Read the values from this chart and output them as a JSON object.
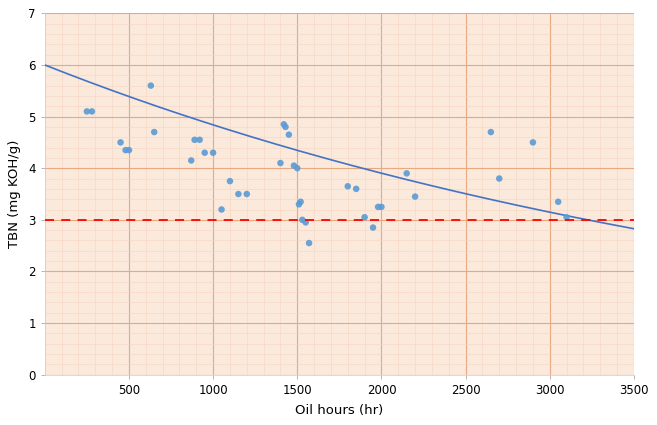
{
  "scatter_x": [
    250,
    280,
    450,
    480,
    500,
    630,
    650,
    870,
    890,
    920,
    950,
    1000,
    1050,
    1100,
    1150,
    1200,
    1400,
    1420,
    1430,
    1450,
    1480,
    1500,
    1510,
    1520,
    1530,
    1550,
    1570,
    1800,
    1850,
    1900,
    1950,
    1980,
    2000,
    2150,
    2200,
    2650,
    2700,
    2900,
    3050,
    3100
  ],
  "scatter_y": [
    5.1,
    5.1,
    4.5,
    4.35,
    4.35,
    5.6,
    4.7,
    4.15,
    4.55,
    4.55,
    4.3,
    4.3,
    3.2,
    3.75,
    3.5,
    3.5,
    4.1,
    4.85,
    4.8,
    4.65,
    4.05,
    4.0,
    3.3,
    3.35,
    3.0,
    2.95,
    2.55,
    3.65,
    3.6,
    3.05,
    2.85,
    3.25,
    3.25,
    3.9,
    3.45,
    4.7,
    3.8,
    4.5,
    3.35,
    3.05
  ],
  "curve_params": {
    "a": 6.0,
    "b": -0.000215
  },
  "hline_y": 3.0,
  "hline_color": "#FF0000",
  "scatter_color": "#5B9BD5",
  "curve_color": "#4472c4",
  "xlim": [
    0,
    3500
  ],
  "ylim": [
    0,
    7
  ],
  "xticks": [
    500,
    1000,
    1500,
    2000,
    2500,
    3000,
    3500
  ],
  "yticks": [
    0,
    1,
    2,
    3,
    4,
    5,
    6,
    7
  ],
  "xlabel": "Oil hours (hr)",
  "ylabel": "TBN (mg KOH/g)",
  "grid_major_color": "#E8A882",
  "grid_minor_color": "#F5D5C0",
  "bg_color": "#FBE9DC",
  "fig_bg": "#FFFFFF"
}
